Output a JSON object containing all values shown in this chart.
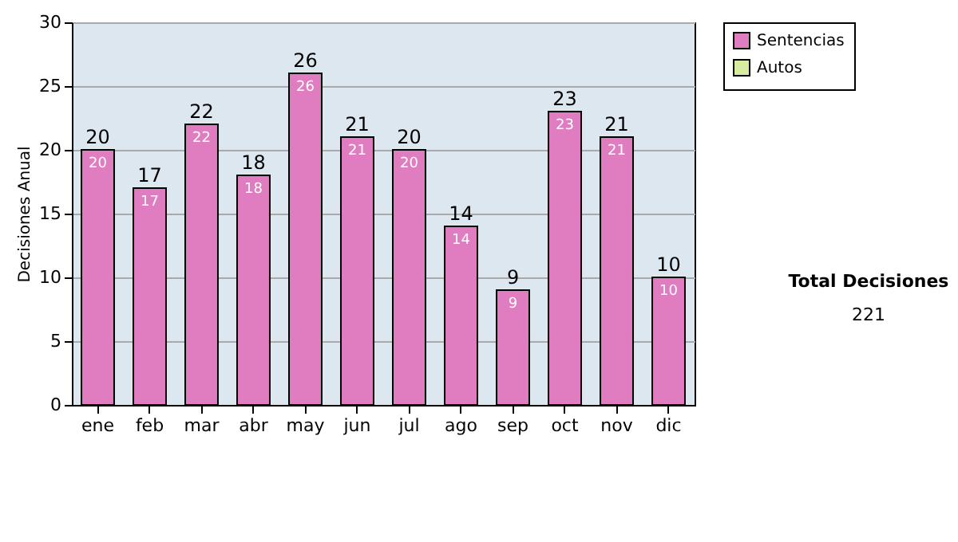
{
  "chart_data": {
    "type": "bar",
    "ylabel": "Decisiones Anual",
    "categories": [
      "ene",
      "feb",
      "mar",
      "abr",
      "may",
      "jun",
      "jul",
      "ago",
      "sep",
      "oct",
      "nov",
      "dic"
    ],
    "series": [
      {
        "name": "Sentencias",
        "color": "#e07cc0",
        "values": [
          20,
          17,
          22,
          18,
          26,
          21,
          20,
          14,
          9,
          23,
          21,
          10
        ]
      },
      {
        "name": "Autos",
        "color": "#d8eca0",
        "values": [
          null,
          null,
          null,
          null,
          null,
          null,
          null,
          null,
          null,
          null,
          null,
          null
        ]
      }
    ],
    "stacked": true,
    "data_labels": true,
    "totals": [
      "20",
      "17",
      "22",
      "18",
      "26",
      "21",
      "20",
      "14",
      "9",
      "23",
      "21",
      "10"
    ],
    "ylim": [
      0,
      30
    ],
    "yticks": [
      0,
      5,
      10,
      15,
      20,
      25,
      30
    ],
    "grid": "y",
    "legend": "right",
    "annotations": [
      "Total Decisiones",
      "221"
    ]
  }
}
